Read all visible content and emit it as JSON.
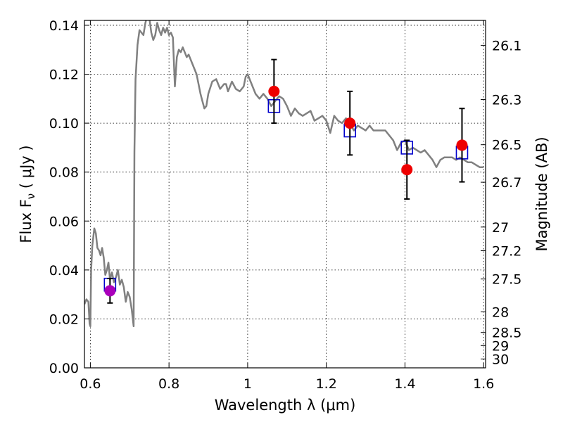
{
  "chart_data": {
    "type": "scatter",
    "xlabel": "Wavelength  λ (μm)",
    "ylabel": "Flux  F",
    "ylabel_sub": "ν",
    "ylabel_unit": " ( μJy )",
    "y2label": "Magnitude (AB)",
    "xlim": [
      0.585,
      1.605
    ],
    "ylim": [
      0.0,
      0.142
    ],
    "grid": true,
    "x_ticks": [
      {
        "value": 0.6,
        "label": "0.6"
      },
      {
        "value": 0.8,
        "label": "0.8"
      },
      {
        "value": 1.0,
        "label": "1"
      },
      {
        "value": 1.2,
        "label": "1.2"
      },
      {
        "value": 1.4,
        "label": "1.4"
      },
      {
        "value": 1.6,
        "label": "1.6"
      }
    ],
    "y_ticks": [
      {
        "value": 0.0,
        "label": "0.00"
      },
      {
        "value": 0.02,
        "label": "0.02"
      },
      {
        "value": 0.04,
        "label": "0.04"
      },
      {
        "value": 0.06,
        "label": "0.06"
      },
      {
        "value": 0.08,
        "label": "0.08"
      },
      {
        "value": 0.1,
        "label": "0.10"
      },
      {
        "value": 0.12,
        "label": "0.12"
      },
      {
        "value": 0.14,
        "label": "0.14"
      }
    ],
    "y2_ticks": [
      {
        "value": 26.1,
        "label": "26.1"
      },
      {
        "value": 26.3,
        "label": "26.3"
      },
      {
        "value": 26.5,
        "label": "26.5"
      },
      {
        "value": 26.7,
        "label": "26.7"
      },
      {
        "value": 27.0,
        "label": "27"
      },
      {
        "value": 27.2,
        "label": "27.2"
      },
      {
        "value": 27.5,
        "label": "27.5"
      },
      {
        "value": 28.0,
        "label": "28"
      },
      {
        "value": 28.5,
        "label": "28.5"
      },
      {
        "value": 29.0,
        "label": "29"
      },
      {
        "value": 30.0,
        "label": "30"
      }
    ],
    "series": [
      {
        "kind": "line",
        "color": "#808080",
        "x": [
          0.585,
          0.59,
          0.595,
          0.598,
          0.6,
          0.602,
          0.605,
          0.61,
          0.614,
          0.618,
          0.622,
          0.626,
          0.63,
          0.634,
          0.638,
          0.642,
          0.646,
          0.65,
          0.655,
          0.66,
          0.665,
          0.67,
          0.675,
          0.68,
          0.685,
          0.69,
          0.695,
          0.7,
          0.705,
          0.708,
          0.71,
          0.712,
          0.715,
          0.72,
          0.725,
          0.73,
          0.735,
          0.74,
          0.745,
          0.75,
          0.755,
          0.76,
          0.765,
          0.77,
          0.775,
          0.78,
          0.785,
          0.79,
          0.795,
          0.8,
          0.805,
          0.81,
          0.815,
          0.82,
          0.825,
          0.83,
          0.835,
          0.84,
          0.845,
          0.85,
          0.86,
          0.87,
          0.88,
          0.885,
          0.89,
          0.895,
          0.9,
          0.91,
          0.92,
          0.93,
          0.94,
          0.945,
          0.95,
          0.96,
          0.97,
          0.98,
          0.99,
          0.995,
          1.0,
          1.01,
          1.02,
          1.03,
          1.04,
          1.05,
          1.06,
          1.07,
          1.08,
          1.09,
          1.1,
          1.11,
          1.12,
          1.13,
          1.14,
          1.15,
          1.16,
          1.17,
          1.18,
          1.19,
          1.2,
          1.21,
          1.22,
          1.23,
          1.24,
          1.25,
          1.26,
          1.27,
          1.28,
          1.29,
          1.3,
          1.31,
          1.32,
          1.33,
          1.34,
          1.35,
          1.36,
          1.37,
          1.38,
          1.39,
          1.4,
          1.41,
          1.42,
          1.43,
          1.44,
          1.45,
          1.46,
          1.47,
          1.48,
          1.49,
          1.5,
          1.51,
          1.52,
          1.53,
          1.54,
          1.55,
          1.56,
          1.57,
          1.58,
          1.59,
          1.6
        ],
        "y": [
          0.026,
          0.028,
          0.027,
          0.018,
          0.017,
          0.04,
          0.05,
          0.057,
          0.055,
          0.049,
          0.048,
          0.046,
          0.049,
          0.045,
          0.038,
          0.04,
          0.043,
          0.036,
          0.039,
          0.035,
          0.037,
          0.04,
          0.034,
          0.036,
          0.033,
          0.027,
          0.031,
          0.029,
          0.024,
          0.02,
          0.017,
          0.088,
          0.118,
          0.132,
          0.138,
          0.137,
          0.136,
          0.141,
          0.144,
          0.143,
          0.137,
          0.134,
          0.136,
          0.141,
          0.138,
          0.136,
          0.139,
          0.137,
          0.139,
          0.136,
          0.137,
          0.135,
          0.115,
          0.127,
          0.13,
          0.129,
          0.131,
          0.129,
          0.127,
          0.128,
          0.124,
          0.12,
          0.112,
          0.109,
          0.106,
          0.107,
          0.112,
          0.117,
          0.118,
          0.114,
          0.116,
          0.116,
          0.113,
          0.117,
          0.114,
          0.113,
          0.115,
          0.119,
          0.12,
          0.116,
          0.112,
          0.11,
          0.112,
          0.11,
          0.107,
          0.109,
          0.111,
          0.11,
          0.107,
          0.103,
          0.106,
          0.104,
          0.103,
          0.104,
          0.105,
          0.101,
          0.102,
          0.103,
          0.101,
          0.096,
          0.103,
          0.101,
          0.1,
          0.102,
          0.1,
          0.097,
          0.099,
          0.098,
          0.097,
          0.099,
          0.097,
          0.097,
          0.097,
          0.097,
          0.095,
          0.093,
          0.089,
          0.092,
          0.093,
          0.089,
          0.09,
          0.089,
          0.088,
          0.089,
          0.087,
          0.085,
          0.082,
          0.085,
          0.086,
          0.086,
          0.086,
          0.085,
          0.086,
          0.085,
          0.084,
          0.084,
          0.083,
          0.082,
          0.082
        ]
      },
      {
        "kind": "open-squares",
        "color": "#0000cc",
        "x": [
          0.65,
          1.067,
          1.26,
          1.405,
          1.545
        ],
        "y": [
          0.034,
          0.107,
          0.097,
          0.09,
          0.088
        ]
      },
      {
        "kind": "filled-circles-errorbars",
        "color": "#ee0000",
        "x": [
          1.067,
          1.26,
          1.405,
          1.545
        ],
        "y": [
          0.113,
          0.1,
          0.081,
          0.091
        ],
        "yerr": [
          0.013,
          0.013,
          0.012,
          0.015
        ]
      },
      {
        "kind": "filled-circles-errorbars",
        "color": "#aa00bb",
        "x": [
          0.65
        ],
        "y": [
          0.0315
        ],
        "yerr": [
          0.005
        ]
      }
    ]
  }
}
